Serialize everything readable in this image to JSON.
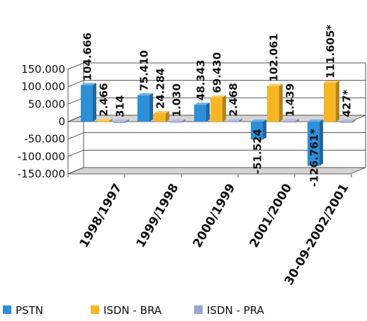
{
  "chart_data": {
    "type": "bar",
    "title": "",
    "xlabel": "",
    "ylabel": "",
    "ylim": [
      -150000,
      150000
    ],
    "yticks": [
      "150.000",
      "100.000",
      "50.000",
      "0",
      "-50.000",
      "-100.000",
      "-150.000"
    ],
    "categories": [
      "1998/1997",
      "1999/1998",
      "2000/1999",
      "2001/2000",
      "30-09-2002/2001"
    ],
    "series": [
      {
        "name": "PSTN",
        "color": "#2e8fd9",
        "values": [
          104666,
          75410,
          48343,
          -51524,
          -126761
        ],
        "labels": [
          "104.666",
          "75.410",
          "48.343",
          "-51.524",
          "-126.761*"
        ]
      },
      {
        "name": "ISDN - BRA",
        "color": "#f6b624",
        "values": [
          2466,
          24284,
          69430,
          102061,
          111605
        ],
        "labels": [
          "2.466",
          "24.284",
          "69.430",
          "102.061",
          "111.605*"
        ]
      },
      {
        "name": "ISDN - PRA",
        "color": "#97a6d6",
        "values": [
          314,
          1030,
          2468,
          1439,
          427
        ],
        "labels": [
          "314",
          "1.030",
          "2.468",
          "1.439",
          "427*"
        ]
      }
    ],
    "legend_position": "bottom",
    "grid": true
  }
}
